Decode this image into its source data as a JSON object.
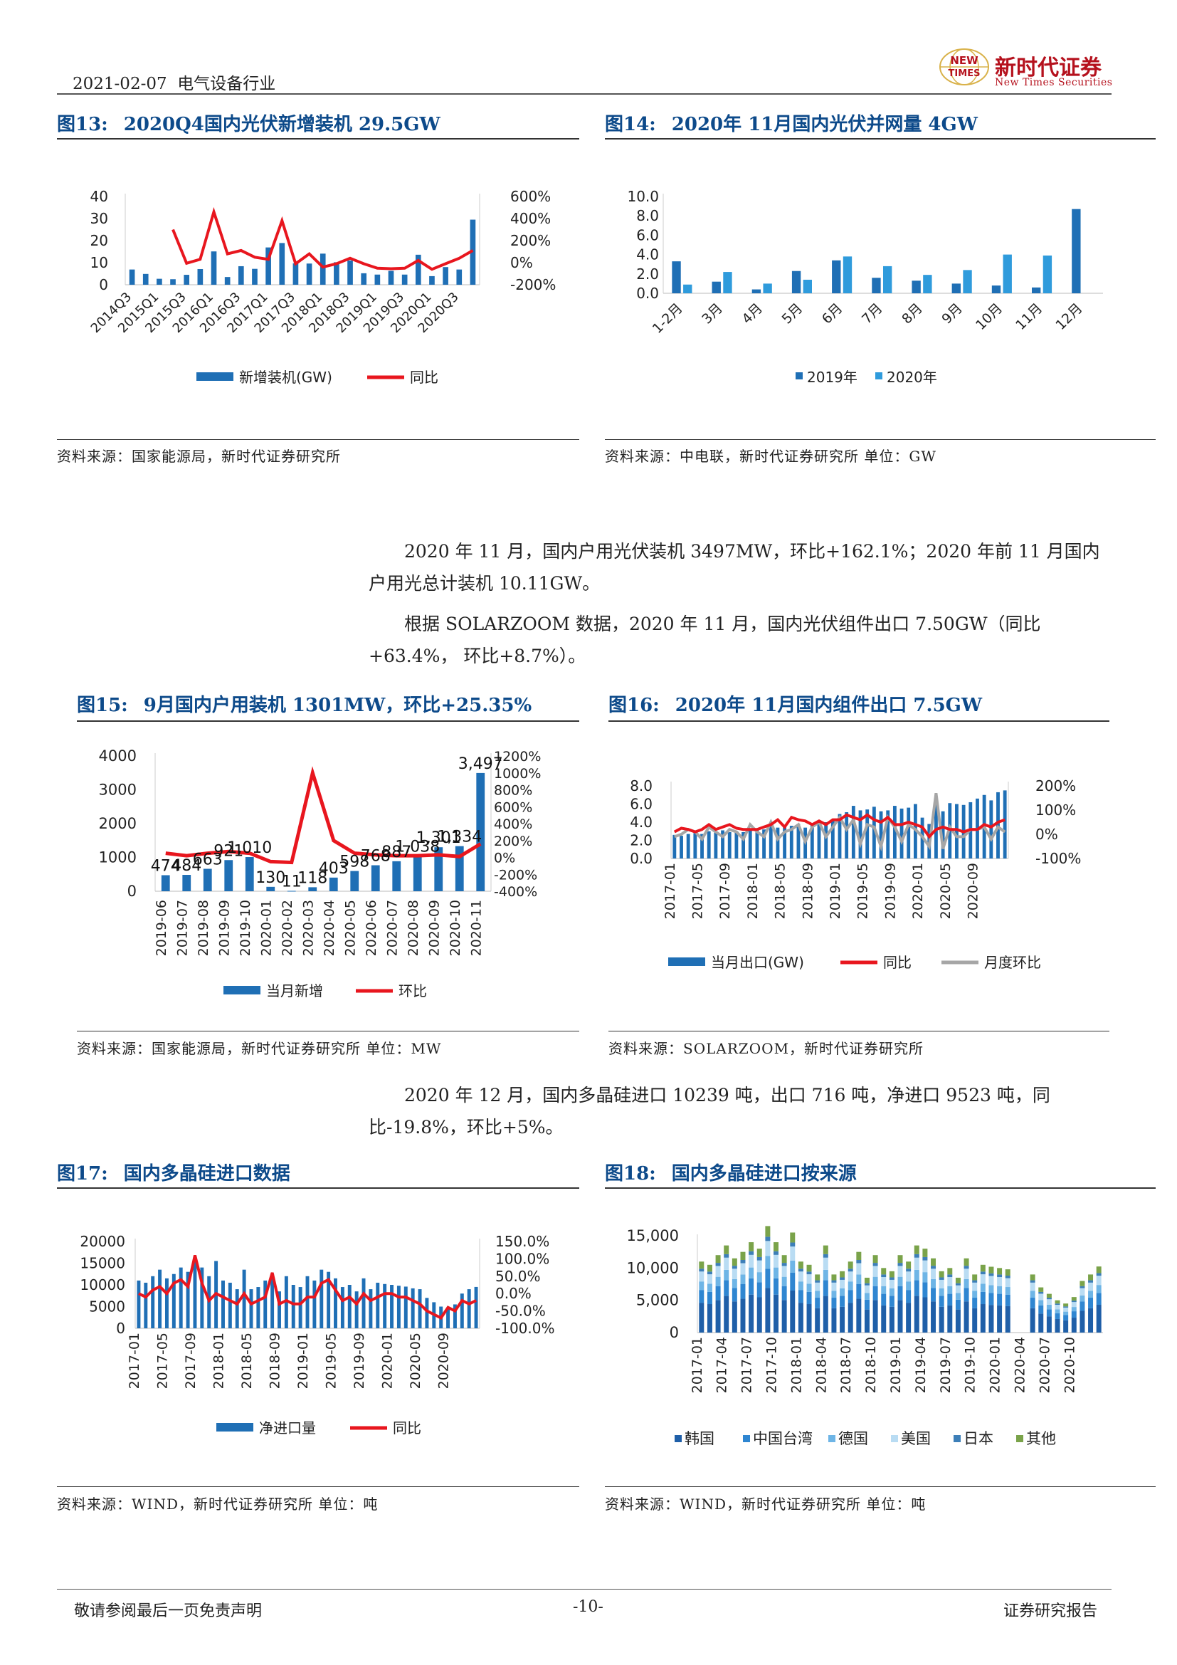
{
  "header": {
    "date": "2021-02-07",
    "industry": "电气设备行业",
    "logo_cn": "新时代证券",
    "logo_en": "New Times Securities",
    "logo_mark_top": "NEW",
    "logo_mark_bottom": "TIMES"
  },
  "fig13": {
    "num": "图13:",
    "title": "2020Q4国内光伏新增装机 29.5GW",
    "source": "资料来源：国家能源局，新时代证券研究所"
  },
  "fig14": {
    "num": "图14:",
    "title": "2020年 11月国内光伏并网量 4GW",
    "source": "资料来源：中电联，新时代证券研究所 单位：GW"
  },
  "fig15": {
    "num": "图15:",
    "title": "9月国内户用装机 1301MW，环比+25.35%",
    "source": "资料来源：国家能源局，新时代证券研究所 单位：MW"
  },
  "fig16": {
    "num": "图16:",
    "title": "2020年 11月国内组件出口 7.5GW",
    "source": "资料来源：SOLARZOOM，新时代证券研究所"
  },
  "fig17": {
    "num": "图17:",
    "title": "国内多晶硅进口数据",
    "source": "资料来源：WIND，新时代证券研究所 单位：吨"
  },
  "fig18": {
    "num": "图18:",
    "title": "国内多晶硅进口按来源",
    "source": "资料来源：WIND，新时代证券研究所 单位：吨"
  },
  "paragraphs": {
    "p1": "2020 年 11 月，国内户用光伏装机 3497MW，环比+162.1%；2020 年前 11 月国内户用光总计装机 10.11GW。",
    "p2": "根据 SOLARZOOM 数据，2020 年 11 月，国内光伏组件出口 7.50GW（同比+63.4%， 环比+8.7%）。",
    "p3": "2020 年 12 月，国内多晶硅进口 10239 吨，出口 716 吨，净进口 9523 吨，同比-19.8%，环比+5%。"
  },
  "footer": {
    "left": "敬请参阅最后一页免责声明",
    "center": "-10-",
    "right": "证券研究报告"
  },
  "colors": {
    "title": "#0d4a8a",
    "bar_dark": "#1f6fb5",
    "bar_light": "#2f9bdc",
    "line_red": "#e8161e",
    "line_gray": "#a6a6a6",
    "logo_red": "#b5111d"
  },
  "chart_data": [
    {
      "id": "fig13",
      "type": "bar+line",
      "x_tick_labels": [
        "2014Q3",
        "2015Q1",
        "2015Q3",
        "2016Q1",
        "2016Q3",
        "2017Q1",
        "2017Q3",
        "2018Q1",
        "2018Q3",
        "2019Q1",
        "2019Q3",
        "2020Q1",
        "2020Q3"
      ],
      "y_ticks": [
        "40",
        "30",
        "20",
        "10",
        "0"
      ],
      "y2_ticks": [
        "600%",
        "400%",
        "200%",
        "0%",
        "-200%"
      ],
      "ylim": [
        0,
        40
      ],
      "y2lim": [
        -200,
        600
      ],
      "series": [
        {
          "name": "新增装机(GW)",
          "kind": "bar",
          "values": [
            6.9,
            4.9,
            2.7,
            2.5,
            4.5,
            7.1,
            15.1,
            3.5,
            8.4,
            7.2,
            16.9,
            18.9,
            9.7,
            9.6,
            14.1,
            10.2,
            11.0,
            5.2,
            4.6,
            6.3,
            4.6,
            13.6,
            3.9,
            8.0,
            6.9,
            29.5
          ]
        },
        {
          "name": "同比",
          "kind": "line",
          "values": [
            null,
            null,
            null,
            300,
            -5,
            30,
            460,
            80,
            110,
            50,
            30,
            380,
            -10,
            80,
            -40,
            -10,
            40,
            -10,
            -50,
            -55,
            -50,
            20,
            -60,
            -10,
            40,
            110
          ]
        }
      ]
    },
    {
      "id": "fig14",
      "type": "bar",
      "categories": [
        "1-2月",
        "3月",
        "4月",
        "5月",
        "6月",
        "7月",
        "8月",
        "9月",
        "10月",
        "11月",
        "12月"
      ],
      "y_ticks": [
        "10.0",
        "8.0",
        "6.0",
        "4.0",
        "2.0",
        "0.0"
      ],
      "ylim": [
        0,
        10
      ],
      "series": [
        {
          "name": "2019年",
          "values": [
            3.3,
            1.2,
            0.4,
            2.3,
            3.4,
            1.6,
            1.3,
            1.0,
            0.8,
            0.6,
            8.7
          ]
        },
        {
          "name": "2020年",
          "values": [
            0.9,
            2.2,
            1.0,
            1.4,
            3.8,
            2.8,
            1.9,
            2.4,
            4.0,
            3.9,
            null
          ]
        }
      ]
    },
    {
      "id": "fig15",
      "type": "bar+line",
      "categories": [
        "2019-06",
        "2019-07",
        "2019-08",
        "2019-09",
        "2019-10",
        "2020-01",
        "2020-02",
        "2020-03",
        "2020-04",
        "2020-05",
        "2020-06",
        "2020-07",
        "2020-08",
        "2020-09",
        "2020-10",
        "2020-11"
      ],
      "y_ticks": [
        "4000",
        "3000",
        "2000",
        "1000",
        "0"
      ],
      "ylim": [
        0,
        4000
      ],
      "y2_ticks": [
        "1200%",
        "1000%",
        "800%",
        "600%",
        "400%",
        "200%",
        "0%",
        "-200%",
        "-400%"
      ],
      "y2lim": [
        -400,
        1200
      ],
      "series": [
        {
          "name": "当月新增",
          "kind": "bar",
          "values": [
            474,
            484,
            663,
            921,
            1010,
            130,
            11,
            118,
            403,
            598,
            768,
            887,
            1038,
            1301,
            1334,
            3497
          ],
          "data_labels": [
            "474",
            "484",
            "663",
            "921",
            "1,010",
            "130",
            "11",
            "118",
            "403",
            "598",
            "768",
            "887",
            "1,038",
            "1,301",
            "1,334",
            "3,497"
          ]
        },
        {
          "name": "环比",
          "kind": "line",
          "values": [
            50,
            20,
            50,
            70,
            50,
            -50,
            -60,
            1000,
            200,
            50,
            30,
            20,
            20,
            30,
            10,
            160
          ]
        }
      ]
    },
    {
      "id": "fig16",
      "type": "bar+line",
      "x_tick_labels": [
        "2017-01",
        "2017-05",
        "2017-09",
        "2018-01",
        "2018-05",
        "2018-09",
        "2019-01",
        "2019-05",
        "2019-09",
        "2020-01",
        "2020-05",
        "2020-09"
      ],
      "y_ticks": [
        "8.0",
        "6.0",
        "4.0",
        "2.0",
        "0.0"
      ],
      "ylim": [
        0,
        8
      ],
      "y2_ticks": [
        "200%",
        "100%",
        "0%",
        "-100%"
      ],
      "y2lim": [
        -100,
        200
      ],
      "series": [
        {
          "name": "当月出口(GW)",
          "kind": "bar",
          "values": [
            2.6,
            2.5,
            2.7,
            2.8,
            2.7,
            3.0,
            3.0,
            3.1,
            2.9,
            3.0,
            2.9,
            3.2,
            3.3,
            3.2,
            3.6,
            3.4,
            3.5,
            3.6,
            3.8,
            3.4,
            3.7,
            4.1,
            4.0,
            4.2,
            4.9,
            5.1,
            5.8,
            5.3,
            5.4,
            5.7,
            5.2,
            5.3,
            5.8,
            5.5,
            5.6,
            6.0,
            4.5,
            3.8,
            6.3,
            5.2,
            6.1,
            6.0,
            5.9,
            6.2,
            6.6,
            7.0,
            6.4,
            7.3,
            7.5
          ]
        },
        {
          "name": "同比",
          "kind": "line",
          "values": [
            10,
            25,
            20,
            10,
            20,
            40,
            20,
            30,
            40,
            25,
            20,
            20,
            20,
            30,
            40,
            60,
            30,
            70,
            60,
            55,
            40,
            55,
            40,
            60,
            60,
            80,
            70,
            60,
            80,
            60,
            50,
            70,
            40,
            40,
            50,
            40,
            30,
            -10,
            20,
            30,
            20,
            20,
            10,
            20,
            20,
            40,
            30,
            50,
            60
          ]
        },
        {
          "name": "月度环比",
          "kind": "line",
          "values": [
            -10,
            0,
            20,
            10,
            -20,
            30,
            10,
            -10,
            20,
            10,
            -20,
            40,
            10,
            -10,
            50,
            -20,
            10,
            20,
            40,
            -30,
            30,
            50,
            -10,
            30,
            70,
            20,
            60,
            -40,
            40,
            30,
            -50,
            70,
            30,
            -30,
            40,
            20,
            -10,
            -50,
            170,
            -60,
            30,
            -10,
            -10,
            20,
            20,
            30,
            -20,
            30,
            10
          ]
        }
      ]
    },
    {
      "id": "fig17",
      "type": "bar+line",
      "x_tick_labels": [
        "2017-01",
        "2017-05",
        "2017-09",
        "2018-01",
        "2018-05",
        "2018-09",
        "2019-01",
        "2019-05",
        "2019-09",
        "2020-01",
        "2020-05",
        "2020-09"
      ],
      "y_ticks": [
        "20000",
        "15000",
        "10000",
        "5000",
        "0"
      ],
      "ylim": [
        0,
        20000
      ],
      "y2_ticks": [
        "150.0%",
        "100.0%",
        "50.0%",
        "0.0%",
        "-50.0%",
        "-100.0%"
      ],
      "y2lim": [
        -100,
        150
      ],
      "series": [
        {
          "name": "净进口量",
          "kind": "bar",
          "values": [
            11000,
            10500,
            12000,
            13500,
            11500,
            12500,
            14000,
            13000,
            16500,
            14000,
            12000,
            15500,
            11000,
            10500,
            9000,
            13500,
            9000,
            9500,
            11000,
            12500,
            8500,
            12000,
            10000,
            9500,
            12000,
            11000,
            13500,
            13000,
            11500,
            9500,
            10000,
            8500,
            11500,
            9000,
            10500,
            10200,
            10000,
            9800,
            9600,
            9200,
            9000,
            7000,
            6000,
            5000,
            4500,
            5500,
            8000,
            9000,
            9523
          ]
        },
        {
          "name": "同比",
          "kind": "line",
          "values": [
            0,
            -10,
            10,
            20,
            0,
            30,
            40,
            20,
            110,
            30,
            -20,
            0,
            -10,
            -20,
            -30,
            0,
            -30,
            -20,
            -10,
            60,
            -30,
            -20,
            -30,
            -30,
            -10,
            -10,
            30,
            40,
            10,
            -20,
            -10,
            -30,
            0,
            -20,
            -10,
            0,
            0,
            -10,
            -10,
            -20,
            -30,
            -50,
            -60,
            -70,
            -40,
            -50,
            -20,
            -30,
            -19.8
          ]
        }
      ]
    },
    {
      "id": "fig18",
      "type": "stacked-bar",
      "x_tick_labels": [
        "2017-01",
        "2017-04",
        "2017-07",
        "2017-10",
        "2018-01",
        "2018-04",
        "2018-07",
        "2018-10",
        "2019-01",
        "2019-04",
        "2019-07",
        "2019-10",
        "2020-01",
        "2020-04",
        "2020-07",
        "2020-10"
      ],
      "y_ticks": [
        "15,000",
        "10,000",
        "5,000",
        "0"
      ],
      "ylim": [
        0,
        15000
      ],
      "legend": [
        "韩国",
        "中国台湾",
        "德国",
        "美国",
        "日本",
        "其他"
      ],
      "totals": [
        11000,
        10500,
        12000,
        13500,
        11500,
        12500,
        14000,
        13000,
        16500,
        14000,
        12000,
        15500,
        11000,
        10500,
        9000,
        13500,
        9000,
        9500,
        11000,
        12500,
        8500,
        12000,
        10000,
        9500,
        12000,
        11000,
        13500,
        13000,
        11500,
        9500,
        10000,
        8500,
        11500,
        9000,
        10500,
        10200,
        10000,
        9800,
        null,
        null,
        9000,
        7000,
        6000,
        5000,
        4500,
        5500,
        8000,
        9000,
        10239
      ]
    }
  ]
}
